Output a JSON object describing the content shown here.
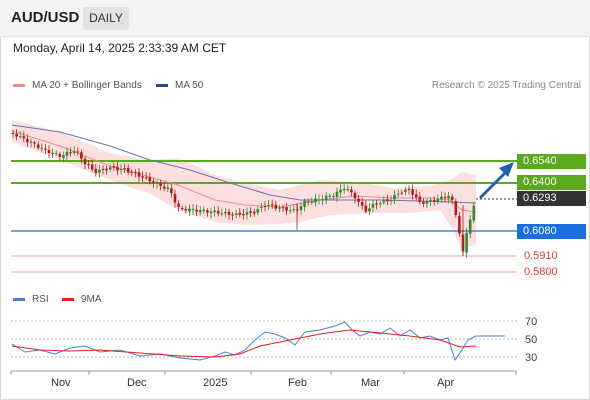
{
  "header": {
    "pair": "AUD/USD",
    "timeframe": "DAILY"
  },
  "datetime": "Monday, April 14, 2025 2:33:39 AM CET",
  "legend": {
    "bb": {
      "label": "MA 20 + Bollinger Bands",
      "color": "#f28b8b"
    },
    "ma50": {
      "label": "MA 50",
      "color": "#2a4b8d"
    }
  },
  "copyright": "Research © 2025 Trading Central",
  "colors": {
    "resistance": "#5aaa1e",
    "support": "#1a6fdf",
    "stop": "#e23a3a",
    "current": "#333333",
    "bullish_candle": "#2e8b2e",
    "bearish_candle": "#b02020",
    "bands_fill": "#fbd5d5",
    "ma20": "#f28b8b",
    "ma50": "#6a74b8",
    "rsi": "#4a7fd8",
    "rsi_ma": "#e02020",
    "target_arrow": "#2060b0"
  },
  "levels": {
    "r2": "0.6540",
    "r1": "0.6400",
    "current": "0.6293",
    "s1": "0.6080",
    "s2": "0.5910",
    "s3": "0.5800"
  },
  "rsi_legend": {
    "rsi": {
      "label": "RSI",
      "color": "#4a7fd8"
    },
    "ma": {
      "label": "9MA",
      "color": "#e02020"
    }
  },
  "rsi_levels": [
    "70",
    "50",
    "30"
  ],
  "months": [
    "Nov",
    "Dec",
    "2025",
    "Feb",
    "Mar",
    "Apr"
  ]
}
